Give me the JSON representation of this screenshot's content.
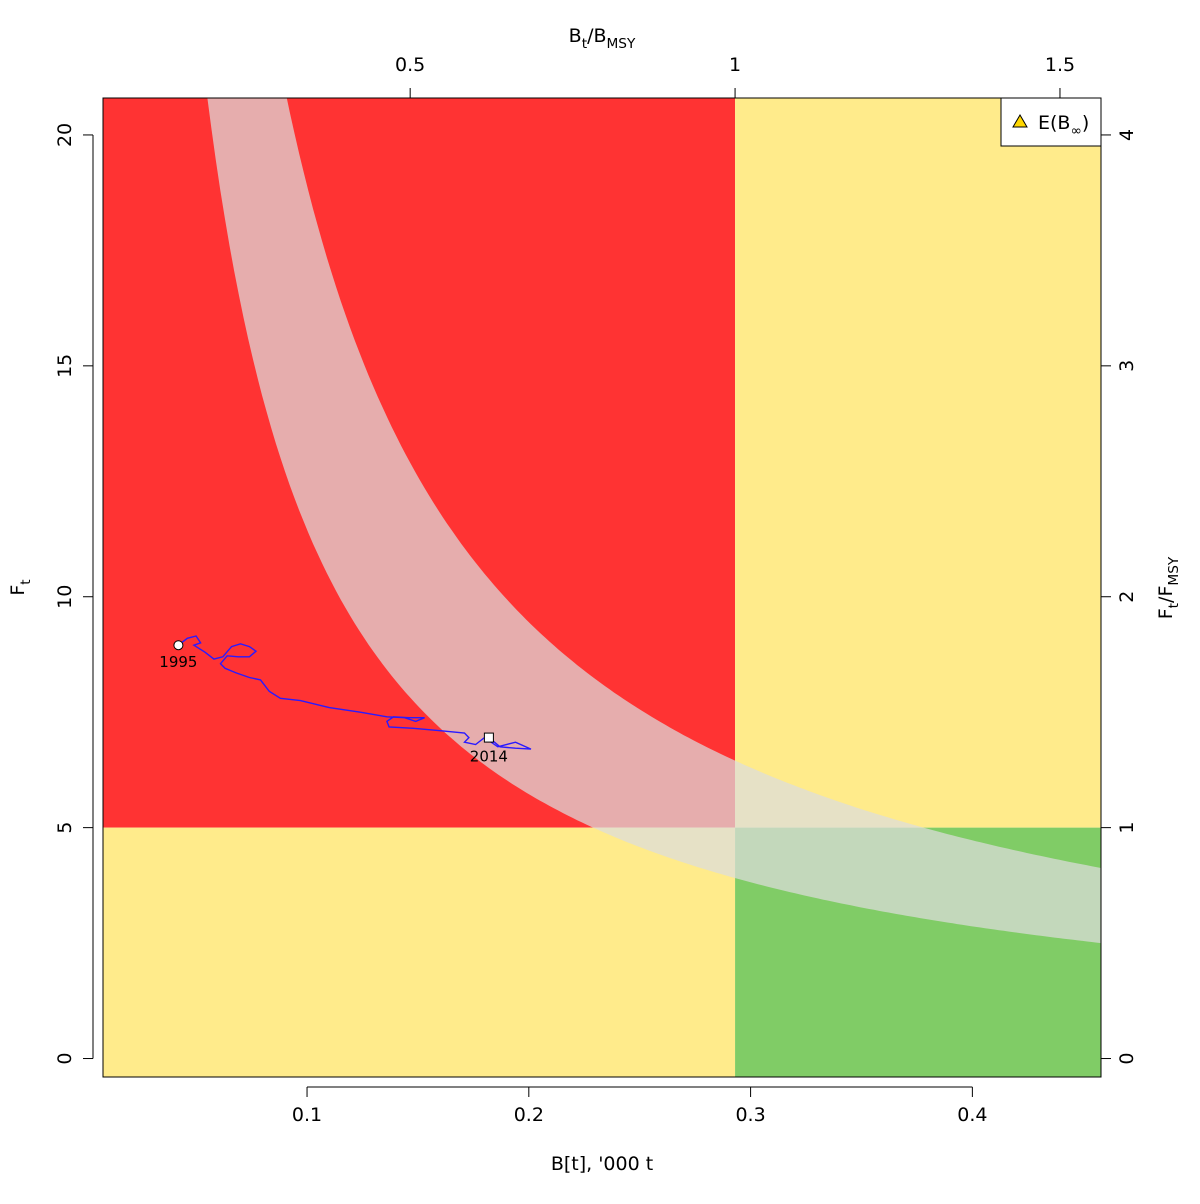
{
  "chart_data": {
    "type": "scatter",
    "title": "",
    "xlabel": "B[t], '000 t",
    "ylabel": "F",
    "ylabel_sub": "t",
    "top_label": {
      "main": "B",
      "sub": "t",
      "slash": "/",
      "main2": "B",
      "sub2": "MSY"
    },
    "right_label": {
      "main": "F",
      "sub": "t",
      "slash": "/",
      "main2": "F",
      "sub2": "MSY"
    },
    "xlim": [
      0.008,
      0.458
    ],
    "ylim": [
      -0.4,
      20.8
    ],
    "x_ticks": [
      0.1,
      0.2,
      0.3,
      0.4
    ],
    "x_tick_labels": [
      "0.1",
      "0.2",
      "0.3",
      "0.4"
    ],
    "y_ticks": [
      0,
      5,
      10,
      15,
      20
    ],
    "y_tick_labels": [
      "0",
      "5",
      "10",
      "15",
      "20"
    ],
    "top_ticks": [
      0.5,
      1,
      1.5
    ],
    "top_tick_labels": [
      "0.5",
      "1",
      "1.5"
    ],
    "right_ticks": [
      0,
      1,
      2,
      3,
      4
    ],
    "right_tick_labels": [
      "0",
      "1",
      "2",
      "3",
      "4"
    ],
    "bmsy": 0.293,
    "fmsy": 5.0,
    "grid": false,
    "colors": {
      "red_zone": "#ff3333",
      "yellow_zone": "#ffeb8b",
      "green_zone": "#80cc66",
      "band": "#dcdcdc",
      "band_opacity": 0.72,
      "trajectory": "#2a1aff",
      "legend_marker": "#ffd700"
    },
    "equilibrium_band": {
      "lower_c": 1.145,
      "upper_c": 1.89
    },
    "legend": {
      "position": "top-right",
      "entries": [
        {
          "marker": "triangle",
          "label_main": "E(B",
          "label_sub": "∞",
          "label_end": ")"
        }
      ]
    },
    "trajectory": {
      "series_x": [
        0.042,
        0.046,
        0.05,
        0.052,
        0.049,
        0.054,
        0.058,
        0.062,
        0.066,
        0.07,
        0.074,
        0.077,
        0.074,
        0.069,
        0.064,
        0.061,
        0.063,
        0.068,
        0.074,
        0.079,
        0.083,
        0.088,
        0.097,
        0.11,
        0.124,
        0.136,
        0.144,
        0.149,
        0.153,
        0.146,
        0.139,
        0.136,
        0.137,
        0.148,
        0.16,
        0.171,
        0.173,
        0.171,
        0.176,
        0.18,
        0.186,
        0.194,
        0.201,
        0.194,
        0.187,
        0.182
      ],
      "series_y": [
        8.95,
        9.1,
        9.15,
        9.0,
        8.95,
        8.8,
        8.65,
        8.7,
        8.92,
        8.98,
        8.92,
        8.82,
        8.7,
        8.7,
        8.72,
        8.55,
        8.45,
        8.35,
        8.25,
        8.2,
        7.95,
        7.8,
        7.75,
        7.6,
        7.5,
        7.4,
        7.38,
        7.3,
        7.38,
        7.38,
        7.4,
        7.3,
        7.18,
        7.15,
        7.1,
        7.05,
        6.95,
        6.85,
        6.8,
        6.95,
        6.75,
        6.85,
        6.7,
        6.72,
        6.75,
        6.95
      ],
      "start": {
        "x": 0.042,
        "y": 8.95,
        "label": "1995"
      },
      "end": {
        "x": 0.182,
        "y": 6.95,
        "label": "2014"
      }
    }
  }
}
